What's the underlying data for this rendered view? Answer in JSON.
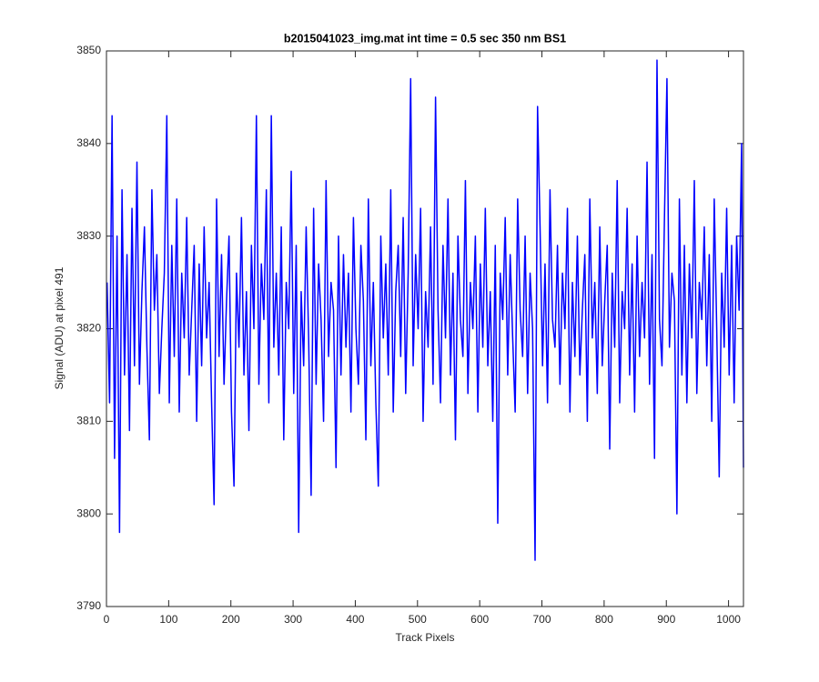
{
  "chart_data": {
    "type": "line",
    "title": "b2015041023_img.mat int time = 0.5 sec  350 nm BS1",
    "x_label": "Track Pixels",
    "y_label": "Signal (ADU) at pixel 491",
    "xlim": [
      0,
      1024
    ],
    "ylim": [
      3790,
      3850
    ],
    "xticks": [
      0,
      100,
      200,
      300,
      400,
      500,
      600,
      700,
      800,
      900,
      1000
    ],
    "yticks": [
      3790,
      3800,
      3810,
      3820,
      3830,
      3840,
      3850
    ],
    "grid": false,
    "x": [
      1,
      5,
      9,
      13,
      17,
      21,
      25,
      29,
      33,
      37,
      41,
      45,
      49,
      53,
      57,
      61,
      65,
      69,
      73,
      77,
      81,
      85,
      89,
      93,
      97,
      101,
      105,
      109,
      113,
      117,
      121,
      125,
      129,
      133,
      137,
      141,
      145,
      149,
      153,
      157,
      161,
      165,
      169,
      173,
      177,
      181,
      185,
      189,
      193,
      197,
      201,
      205,
      209,
      213,
      217,
      221,
      225,
      229,
      233,
      237,
      241,
      245,
      249,
      253,
      257,
      261,
      265,
      269,
      273,
      277,
      281,
      285,
      289,
      293,
      297,
      301,
      305,
      309,
      313,
      317,
      321,
      325,
      329,
      333,
      337,
      341,
      345,
      349,
      353,
      357,
      361,
      365,
      369,
      373,
      377,
      381,
      385,
      389,
      393,
      397,
      401,
      405,
      409,
      413,
      417,
      421,
      425,
      429,
      433,
      437,
      441,
      445,
      449,
      453,
      457,
      461,
      465,
      469,
      473,
      477,
      481,
      485,
      489,
      493,
      497,
      501,
      505,
      509,
      513,
      517,
      521,
      525,
      529,
      533,
      537,
      541,
      545,
      549,
      553,
      557,
      561,
      565,
      569,
      573,
      577,
      581,
      585,
      589,
      593,
      597,
      601,
      605,
      609,
      613,
      617,
      621,
      625,
      629,
      633,
      637,
      641,
      645,
      649,
      653,
      657,
      661,
      665,
      669,
      673,
      677,
      681,
      685,
      689,
      693,
      697,
      701,
      705,
      709,
      713,
      717,
      721,
      725,
      729,
      733,
      737,
      741,
      745,
      749,
      753,
      757,
      761,
      765,
      769,
      773,
      777,
      781,
      785,
      789,
      793,
      797,
      801,
      805,
      809,
      813,
      817,
      821,
      825,
      829,
      833,
      837,
      841,
      845,
      849,
      853,
      857,
      861,
      865,
      869,
      873,
      877,
      881,
      885,
      889,
      893,
      897,
      901,
      905,
      909,
      913,
      917,
      921,
      925,
      929,
      933,
      937,
      941,
      945,
      949,
      953,
      957,
      961,
      965,
      969,
      973,
      977,
      981,
      985,
      989,
      993,
      997,
      1001,
      1005,
      1009,
      1013,
      1017,
      1021,
      1024
    ],
    "series": [
      {
        "name": "Signal",
        "color": "#0000ff",
        "values": [
          3825,
          3812,
          3843,
          3806,
          3830,
          3798,
          3835,
          3815,
          3828,
          3809,
          3833,
          3816,
          3838,
          3814,
          3824,
          3831,
          3818,
          3808,
          3835,
          3822,
          3828,
          3813,
          3820,
          3826,
          3843,
          3812,
          3829,
          3817,
          3834,
          3811,
          3826,
          3819,
          3832,
          3815,
          3822,
          3829,
          3810,
          3827,
          3816,
          3831,
          3819,
          3825,
          3812,
          3801,
          3834,
          3817,
          3828,
          3814,
          3823,
          3830,
          3811,
          3803,
          3826,
          3818,
          3832,
          3815,
          3824,
          3809,
          3829,
          3820,
          3843,
          3814,
          3827,
          3821,
          3835,
          3812,
          3843,
          3818,
          3826,
          3815,
          3831,
          3808,
          3825,
          3820,
          3837,
          3813,
          3829,
          3798,
          3824,
          3816,
          3831,
          3819,
          3802,
          3833,
          3814,
          3827,
          3821,
          3810,
          3836,
          3817,
          3825,
          3822,
          3805,
          3830,
          3815,
          3828,
          3818,
          3826,
          3811,
          3832,
          3820,
          3814,
          3829,
          3823,
          3808,
          3834,
          3816,
          3825,
          3812,
          3803,
          3830,
          3819,
          3827,
          3815,
          3835,
          3811,
          3824,
          3829,
          3817,
          3832,
          3813,
          3826,
          3847,
          3816,
          3828,
          3820,
          3833,
          3810,
          3824,
          3818,
          3831,
          3814,
          3845,
          3822,
          3812,
          3829,
          3819,
          3834,
          3815,
          3826,
          3808,
          3830,
          3821,
          3817,
          3836,
          3813,
          3825,
          3820,
          3830,
          3811,
          3827,
          3818,
          3833,
          3816,
          3824,
          3810,
          3829,
          3799,
          3826,
          3821,
          3832,
          3815,
          3828,
          3819,
          3811,
          3834,
          3822,
          3817,
          3830,
          3813,
          3826,
          3820,
          3795,
          3844,
          3831,
          3816,
          3827,
          3812,
          3835,
          3821,
          3818,
          3829,
          3814,
          3826,
          3820,
          3833,
          3811,
          3825,
          3817,
          3830,
          3815,
          3822,
          3828,
          3810,
          3834,
          3819,
          3825,
          3813,
          3831,
          3816,
          3823,
          3829,
          3807,
          3826,
          3818,
          3836,
          3812,
          3824,
          3820,
          3833,
          3815,
          3827,
          3811,
          3830,
          3817,
          3825,
          3819,
          3838,
          3814,
          3828,
          3806,
          3849,
          3821,
          3816,
          3832,
          3847,
          3818,
          3826,
          3823,
          3800,
          3834,
          3815,
          3829,
          3812,
          3827,
          3819,
          3836,
          3813,
          3825,
          3821,
          3831,
          3816,
          3828,
          3810,
          3834,
          3820,
          3804,
          3826,
          3818,
          3833,
          3815,
          3829,
          3812,
          3830,
          3822,
          3840,
          3805
        ]
      }
    ]
  }
}
